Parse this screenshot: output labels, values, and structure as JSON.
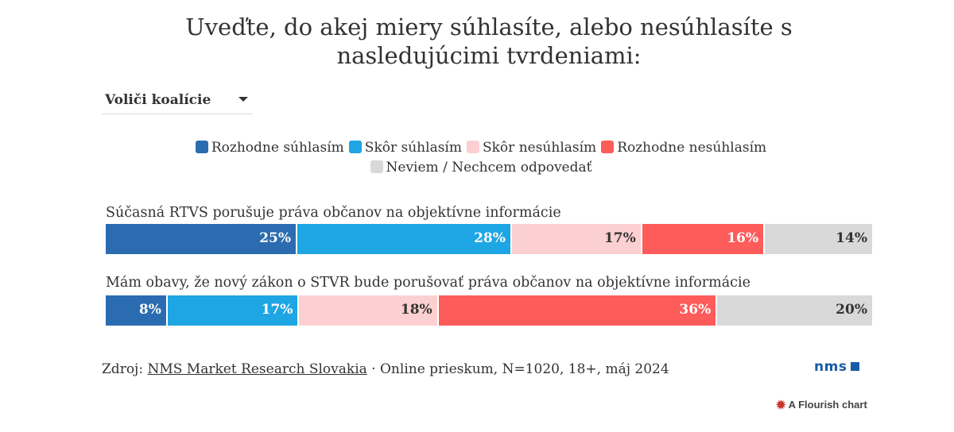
{
  "title": {
    "line1": "Uveďte, do akej miery súhlasíte, alebo nesúhlasíte s",
    "line2": "nasledujúcimi tvrdeniami:"
  },
  "filter": {
    "selected": "Voliči koalície",
    "icon": "caret-down-icon"
  },
  "legend": [
    {
      "label": "Rozhodne súhlasím",
      "color": "#2b6cb0"
    },
    {
      "label": "Skôr súhlasím",
      "color": "#1ea5e3"
    },
    {
      "label": "Skôr nesúhlasím",
      "color": "#fcd0d0"
    },
    {
      "label": "Rozhodne nesúhlasím",
      "color": "#fe5b5b"
    },
    {
      "label": "Neviem / Nechcem odpovedať",
      "color": "#d9d9d9"
    }
  ],
  "chart_data": {
    "type": "bar",
    "stacked": true,
    "orientation": "horizontal",
    "normalized_percent": true,
    "categories": [
      "Súčasná RTVS porušuje práva občanov na objektívne informácie",
      "Mám obavy, že nový zákon o STVR bude porušovať práva občanov na objektívne informácie"
    ],
    "series": [
      {
        "name": "Rozhodne súhlasím",
        "values": [
          25,
          8
        ],
        "labels": [
          "25%",
          "8%"
        ]
      },
      {
        "name": "Skôr súhlasím",
        "values": [
          28,
          17
        ],
        "labels": [
          "28%",
          "17%"
        ]
      },
      {
        "name": "Skôr nesúhlasím",
        "values": [
          17,
          18
        ],
        "labels": [
          "17%",
          "18%"
        ]
      },
      {
        "name": "Rozhodne nesúhlasím",
        "values": [
          16,
          36
        ],
        "labels": [
          "16%",
          "36%"
        ]
      },
      {
        "name": "Neviem / Nechcem odpovedať",
        "values": [
          14,
          20
        ],
        "labels": [
          "14%",
          "20%"
        ]
      }
    ],
    "colors": [
      "#2b6cb0",
      "#1ea5e3",
      "#fcd0d0",
      "#fe5b5b",
      "#d9d9d9"
    ],
    "label_colors": [
      "#ffffff",
      "#ffffff",
      "#333333",
      "#ffffff",
      "#333333"
    ],
    "legend_position": "top"
  },
  "footer": {
    "source_prefix": "Zdroj:",
    "source_link": "NMS Market Research Slovakia",
    "source_rest": " · Online prieskum, N=1020, 18+, máj 2024",
    "logo_text": "nms",
    "flourish_text": "A Flourish chart",
    "flourish_icon": "flourish-logo-icon"
  }
}
